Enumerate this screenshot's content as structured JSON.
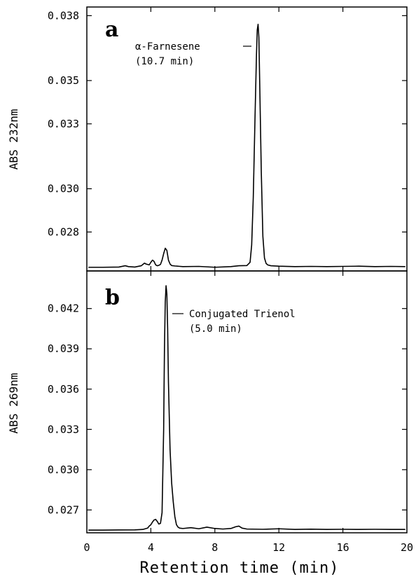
{
  "chart_data": [
    {
      "type": "line",
      "panel_label": "a",
      "ylabel": "ABS 232nm",
      "xlim": [
        0,
        20
      ],
      "ylim": [
        0.0262,
        0.0384
      ],
      "yticks": [
        0.028,
        0.03,
        0.033,
        0.035,
        0.038
      ],
      "ytick_labels": [
        "0.028",
        "0.030",
        "0.033",
        "0.035",
        "0.038"
      ],
      "annotation": {
        "lines": [
          "α-Farnesene",
          "(10.7 min)"
        ],
        "x": 10.7
      },
      "peak": {
        "x": 10.7,
        "y": 0.0376
      },
      "series": [
        {
          "x": [
            0.1,
            1.0,
            2.0,
            2.4,
            2.6,
            3.0,
            3.4,
            3.6,
            3.7,
            3.8,
            3.9,
            4.0,
            4.1,
            4.2,
            4.3,
            4.4,
            4.5,
            4.6,
            4.7,
            4.8,
            4.9,
            5.0,
            5.1,
            5.2,
            5.3,
            5.5,
            6.0,
            7.0,
            8.0,
            9.0,
            9.5,
            10.0,
            10.2,
            10.3,
            10.4,
            10.5,
            10.6,
            10.65,
            10.7,
            10.75,
            10.8,
            10.9,
            11.0,
            11.1,
            11.2,
            11.3,
            11.5,
            12.0,
            13.0,
            14.0,
            15.0,
            16.0,
            17.0,
            18.0,
            19.0,
            19.9
          ],
          "y": [
            0.02637,
            0.02637,
            0.02638,
            0.02644,
            0.0264,
            0.02638,
            0.02644,
            0.02656,
            0.02652,
            0.0265,
            0.02648,
            0.0266,
            0.0267,
            0.02664,
            0.02648,
            0.02644,
            0.02646,
            0.0265,
            0.0267,
            0.027,
            0.02725,
            0.02715,
            0.0267,
            0.02652,
            0.02645,
            0.02643,
            0.0264,
            0.02641,
            0.02637,
            0.0264,
            0.02644,
            0.02645,
            0.0266,
            0.0274,
            0.0296,
            0.033,
            0.0362,
            0.03735,
            0.0376,
            0.037,
            0.035,
            0.0308,
            0.0278,
            0.0268,
            0.02655,
            0.02648,
            0.02644,
            0.02642,
            0.0264,
            0.02641,
            0.0264,
            0.02641,
            0.02642,
            0.0264,
            0.02641,
            0.0264
          ]
        }
      ]
    },
    {
      "type": "line",
      "panel_label": "b",
      "ylabel": "ABS 269nm",
      "xlim": [
        0,
        20
      ],
      "ylim": [
        0.0253,
        0.0448
      ],
      "yticks": [
        0.027,
        0.03,
        0.033,
        0.036,
        0.039,
        0.042
      ],
      "ytick_labels": [
        "0.027",
        "0.030",
        "0.033",
        "0.036",
        "0.039",
        "0.042"
      ],
      "annotation": {
        "lines": [
          "Conjugated Trienol",
          "(5.0 min)"
        ],
        "x": 5.0
      },
      "peak": {
        "x": 5.0,
        "y": 0.0437
      },
      "series": [
        {
          "x": [
            0.1,
            1.0,
            2.0,
            3.0,
            3.5,
            3.8,
            3.9,
            4.0,
            4.1,
            4.2,
            4.3,
            4.4,
            4.5,
            4.6,
            4.7,
            4.8,
            4.85,
            4.9,
            4.95,
            5.0,
            5.05,
            5.1,
            5.2,
            5.3,
            5.4,
            5.5,
            5.6,
            5.7,
            5.8,
            6.0,
            6.5,
            7.0,
            7.5,
            8.0,
            8.5,
            9.0,
            9.3,
            9.5,
            9.7,
            10.0,
            11.0,
            12.0,
            13.0,
            14.0,
            15.0,
            16.0,
            17.0,
            18.0,
            19.0,
            19.9
          ],
          "y": [
            0.0255,
            0.0255,
            0.02551,
            0.02552,
            0.02555,
            0.02565,
            0.0258,
            0.0259,
            0.0261,
            0.02625,
            0.0263,
            0.02615,
            0.02595,
            0.026,
            0.0268,
            0.033,
            0.039,
            0.0425,
            0.0437,
            0.0431,
            0.0405,
            0.0365,
            0.0315,
            0.029,
            0.0276,
            0.0265,
            0.0259,
            0.02572,
            0.02565,
            0.02562,
            0.02568,
            0.0256,
            0.02572,
            0.02562,
            0.02558,
            0.02562,
            0.02575,
            0.0258,
            0.02565,
            0.02558,
            0.02556,
            0.0256,
            0.02555,
            0.02557,
            0.02555,
            0.02556,
            0.02555,
            0.02556,
            0.02555,
            0.02555
          ]
        }
      ]
    }
  ],
  "x_axis": {
    "title": "Retention time (min)",
    "ticks": [
      0,
      4,
      8,
      12,
      16,
      20
    ],
    "tick_labels": [
      "0",
      "4",
      "8",
      "12",
      "16",
      "20"
    ]
  }
}
